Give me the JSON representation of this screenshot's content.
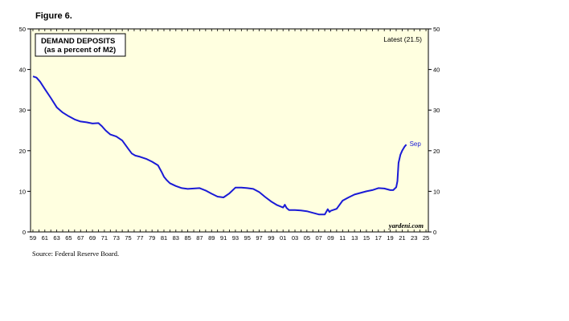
{
  "figure_label": "Figure 6.",
  "source": "Source: Federal Reserve Board.",
  "watermark": "yardeni.com",
  "colors": {
    "line": "#1a1ad6",
    "plot_bg": "#ffffe0",
    "frame": "#000000"
  },
  "chart_data": {
    "type": "line",
    "title": "DEMAND DEPOSITS",
    "subtitle": "(as a percent of M2)",
    "latest_label": "Latest (21.5)",
    "end_label": "Sep",
    "xlim": [
      1958.6,
      2025.4
    ],
    "ylim": [
      0,
      50
    ],
    "yticks": [
      0,
      10,
      20,
      30,
      40,
      50
    ],
    "xtick_labels": [
      {
        "year": 1959,
        "label": "59"
      },
      {
        "year": 1961,
        "label": "61"
      },
      {
        "year": 1963,
        "label": "63"
      },
      {
        "year": 1965,
        "label": "65"
      },
      {
        "year": 1967,
        "label": "67"
      },
      {
        "year": 1969,
        "label": "69"
      },
      {
        "year": 1971,
        "label": "71"
      },
      {
        "year": 1973,
        "label": "73"
      },
      {
        "year": 1975,
        "label": "75"
      },
      {
        "year": 1977,
        "label": "77"
      },
      {
        "year": 1979,
        "label": "79"
      },
      {
        "year": 1981,
        "label": "81"
      },
      {
        "year": 1983,
        "label": "83"
      },
      {
        "year": 1985,
        "label": "85"
      },
      {
        "year": 1987,
        "label": "87"
      },
      {
        "year": 1989,
        "label": "89"
      },
      {
        "year": 1991,
        "label": "91"
      },
      {
        "year": 1993,
        "label": "93"
      },
      {
        "year": 1995,
        "label": "95"
      },
      {
        "year": 1997,
        "label": "97"
      },
      {
        "year": 1999,
        "label": "99"
      },
      {
        "year": 2001,
        "label": "01"
      },
      {
        "year": 2003,
        "label": "03"
      },
      {
        "year": 2005,
        "label": "05"
      },
      {
        "year": 2007,
        "label": "07"
      },
      {
        "year": 2009,
        "label": "09"
      },
      {
        "year": 2011,
        "label": "11"
      },
      {
        "year": 2013,
        "label": "13"
      },
      {
        "year": 2015,
        "label": "15"
      },
      {
        "year": 2017,
        "label": "17"
      },
      {
        "year": 2019,
        "label": "19"
      },
      {
        "year": 2021,
        "label": "21"
      },
      {
        "year": 2023,
        "label": "23"
      },
      {
        "year": 2025,
        "label": "25"
      }
    ],
    "grid": false,
    "series": [
      {
        "x": [
          1959.0,
          1959.6,
          1960.2,
          1961.0,
          1962.0,
          1963.0,
          1964.0,
          1965.0,
          1966.0,
          1967.0,
          1968.0,
          1969.0,
          1970.0,
          1970.6,
          1971.2,
          1972.0,
          1973.0,
          1974.0,
          1975.0,
          1975.6,
          1976.2,
          1977.0,
          1978.0,
          1979.0,
          1980.0,
          1980.6,
          1981.0,
          1981.5,
          1982.0,
          1983.0,
          1984.0,
          1985.0,
          1986.0,
          1987.0,
          1988.0,
          1989.0,
          1990.0,
          1991.0,
          1992.0,
          1993.0,
          1994.0,
          1995.0,
          1996.0,
          1997.0,
          1998.0,
          1999.0,
          2000.0,
          2001.0,
          2001.3,
          2001.6,
          2002.0,
          2003.0,
          2004.0,
          2005.0,
          2006.0,
          2007.0,
          2008.0,
          2008.5,
          2008.8,
          2009.0,
          2010.0,
          2011.0,
          2012.0,
          2013.0,
          2014.0,
          2015.0,
          2016.0,
          2017.0,
          2018.0,
          2019.0,
          2019.5,
          2020.0,
          2020.2,
          2020.4,
          2020.7,
          2021.0,
          2021.4,
          2021.7
        ],
        "values": [
          38.3,
          38.0,
          37.0,
          35.2,
          33.0,
          30.7,
          29.4,
          28.5,
          27.7,
          27.2,
          27.0,
          26.7,
          26.8,
          26.0,
          25.0,
          24.0,
          23.5,
          22.5,
          20.5,
          19.3,
          18.8,
          18.5,
          18.0,
          17.3,
          16.4,
          14.8,
          13.6,
          12.7,
          12.0,
          11.3,
          10.8,
          10.6,
          10.7,
          10.8,
          10.2,
          9.4,
          8.7,
          8.5,
          9.5,
          10.9,
          10.9,
          10.8,
          10.6,
          9.8,
          8.6,
          7.5,
          6.6,
          6.0,
          6.7,
          5.9,
          5.4,
          5.4,
          5.3,
          5.1,
          4.7,
          4.3,
          4.3,
          5.6,
          4.9,
          5.2,
          5.7,
          7.7,
          8.5,
          9.2,
          9.6,
          10.0,
          10.3,
          10.8,
          10.7,
          10.3,
          10.3,
          11.0,
          12.5,
          17.0,
          19.0,
          20.0,
          21.0,
          21.5
        ]
      }
    ]
  }
}
